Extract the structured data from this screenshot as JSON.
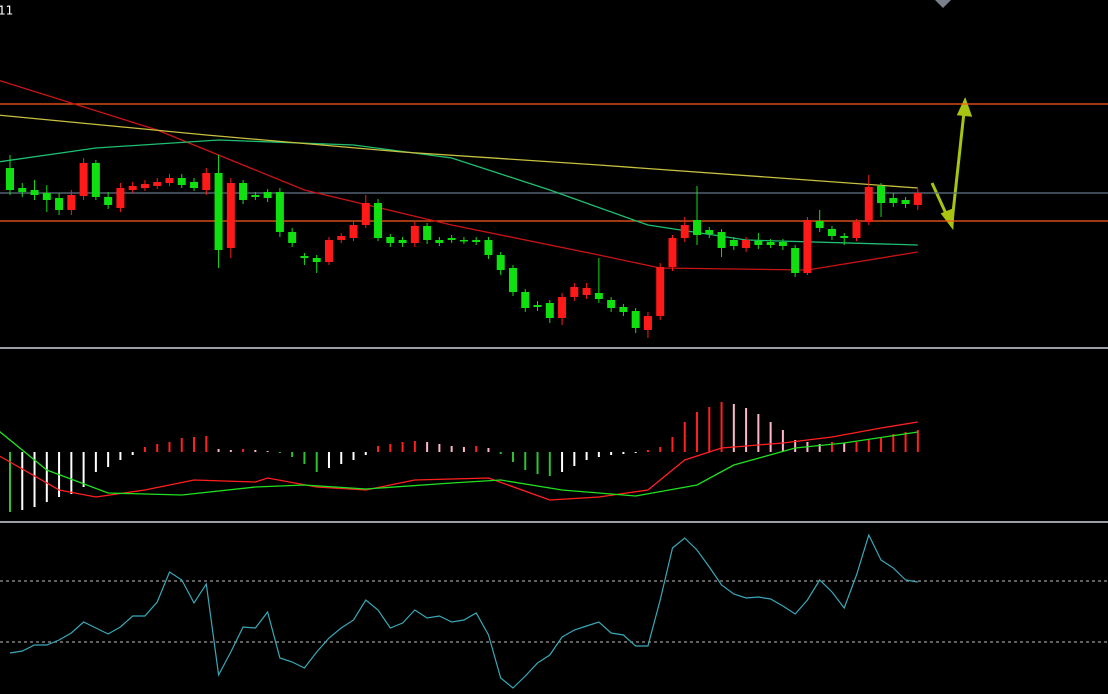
{
  "label": "11",
  "chart_data": [
    {
      "type": "candlestick",
      "pane": [
        0,
        345
      ],
      "xlim": [
        -0.815,
        89.5
      ],
      "ylim": [
        0,
        345
      ],
      "up_color": "#ff1a1a",
      "down_color": "#10e010",
      "open": [
        177,
        157,
        155,
        152,
        147,
        135,
        149,
        182,
        148,
        137,
        155,
        157,
        159,
        162,
        167,
        163,
        155,
        172,
        97,
        162,
        150,
        153,
        153,
        113,
        89,
        87,
        83,
        105,
        107,
        120,
        142,
        108,
        105,
        102,
        119,
        105,
        107,
        105,
        105,
        105,
        90,
        77,
        53,
        40,
        42,
        27,
        48,
        50,
        52,
        45,
        38,
        34,
        15,
        29,
        78,
        107,
        125,
        115,
        113,
        105,
        97,
        104,
        103,
        103,
        97,
        72,
        124,
        116,
        109,
        107,
        123,
        159,
        147,
        145,
        140
      ],
      "close": [
        155,
        153,
        150,
        145,
        135,
        150,
        182,
        148,
        140,
        157,
        159,
        161,
        163,
        167,
        160,
        157,
        172,
        95,
        162,
        145,
        148,
        147,
        113,
        102,
        87,
        83,
        105,
        109,
        120,
        142,
        107,
        102,
        102,
        119,
        105,
        102,
        105,
        104,
        103,
        90,
        75,
        53,
        37,
        38,
        27,
        48,
        58,
        57,
        46,
        37,
        33,
        17,
        29,
        78,
        107,
        120,
        110,
        111,
        97,
        99,
        105,
        100,
        100,
        99,
        72,
        125,
        117,
        109,
        107,
        123,
        158,
        142,
        142,
        141,
        152
      ],
      "high": [
        190,
        162,
        165,
        160,
        152,
        155,
        187,
        185,
        153,
        162,
        163,
        165,
        167,
        171,
        171,
        167,
        177,
        190,
        167,
        165,
        153,
        156,
        157,
        117,
        92,
        90,
        108,
        112,
        124,
        150,
        146,
        111,
        108,
        123,
        122,
        108,
        110,
        108,
        108,
        108,
        93,
        80,
        56,
        44,
        45,
        52,
        62,
        62,
        87,
        48,
        41,
        37,
        33,
        82,
        110,
        128,
        159,
        118,
        116,
        108,
        108,
        112,
        106,
        106,
        100,
        128,
        135,
        119,
        112,
        126,
        170,
        162,
        152,
        148,
        156
      ],
      "low": [
        150,
        148,
        145,
        133,
        130,
        130,
        145,
        145,
        136,
        133,
        152,
        154,
        156,
        159,
        157,
        154,
        150,
        77,
        87,
        141,
        145,
        143,
        108,
        98,
        80,
        72,
        80,
        102,
        104,
        117,
        104,
        98,
        98,
        98,
        101,
        99,
        102,
        101,
        100,
        86,
        70,
        49,
        33,
        34,
        22,
        20,
        44,
        46,
        42,
        33,
        29,
        12,
        7,
        25,
        74,
        103,
        100,
        107,
        88,
        95,
        93,
        96,
        97,
        95,
        68,
        70,
        113,
        105,
        100,
        104,
        120,
        128,
        138,
        137,
        135
      ],
      "series": [
        {
          "color": "#c81414",
          "x": [
            -1,
            12,
            24,
            36,
            48,
            53,
            65,
            74
          ],
          "values": [
            265,
            215,
            155,
            120,
            90,
            77,
            75,
            93
          ]
        },
        {
          "color": "#1fbf70",
          "x": [
            -1,
            7,
            17,
            28,
            36,
            44,
            52,
            60,
            74
          ],
          "values": [
            183,
            197,
            205,
            200,
            187,
            155,
            120,
            105,
            100
          ]
        },
        {
          "color": "#c8c040",
          "x": [
            -1,
            16,
            32,
            48,
            65,
            74
          ],
          "values": [
            230,
            210,
            193,
            180,
            165,
            157
          ]
        }
      ],
      "levels": [
        {
          "value": 241,
          "color": "#ff5a1e"
        },
        {
          "value": 124,
          "color": "#ff5a1e"
        },
        {
          "value": 152,
          "color": "#5f7486"
        }
      ]
    },
    {
      "type": "macd",
      "pane": [
        352,
        520
      ],
      "xlim": [
        -0.815,
        89.5
      ],
      "ylim": [
        -68,
        100
      ],
      "colors": {
        "pos_up": "#ff2020",
        "pos_down": "#ffb6c8",
        "neg_down": "#30c030",
        "neg_up": "#ffffff"
      },
      "values": [
        -60,
        -58,
        -55,
        -50,
        -45,
        -42,
        -35,
        -20,
        -15,
        -8,
        -3,
        5,
        8,
        10,
        14,
        15,
        16,
        3,
        2,
        3,
        2,
        1,
        -1,
        -5,
        -12,
        -20,
        -16,
        -12,
        -8,
        -3,
        6,
        8,
        10,
        11,
        10,
        8,
        6,
        5,
        6,
        4,
        -2,
        -10,
        -18,
        -22,
        -24,
        -20,
        -14,
        -8,
        -5,
        -3,
        -2,
        -1,
        2,
        5,
        15,
        30,
        40,
        45,
        50,
        48,
        44,
        38,
        30,
        22,
        12,
        10,
        8,
        10,
        9,
        10,
        12,
        15,
        18,
        20,
        22
      ],
      "series": [
        {
          "color": "#ff2020",
          "x": [
            -1,
            4,
            7,
            11,
            15,
            20,
            21,
            25,
            29,
            33,
            39,
            44,
            48,
            52,
            55,
            58,
            63,
            67,
            71,
            74
          ],
          "values": [
            -3,
            -38,
            -45,
            -38,
            -28,
            -30,
            -26,
            -35,
            -38,
            -28,
            -26,
            -48,
            -45,
            -38,
            -8,
            4,
            9,
            15,
            24,
            30
          ]
        },
        {
          "color": "#20e020",
          "x": [
            -1,
            3,
            8,
            14,
            20,
            24,
            29,
            36,
            40,
            45,
            51,
            56,
            59,
            64,
            68,
            74
          ],
          "values": [
            22,
            -18,
            -41,
            -43,
            -35,
            -33,
            -37,
            -31,
            -28,
            -38,
            -44,
            -33,
            -13,
            4,
            9,
            20
          ]
        }
      ]
    },
    {
      "type": "line",
      "pane": [
        525,
        694
      ],
      "xlim": [
        -0.815,
        89.5
      ],
      "ylim": [
        0,
        169
      ],
      "color": "#3aa8b8",
      "values": [
        41,
        43,
        49,
        49,
        54,
        61,
        72,
        66,
        60,
        67,
        78,
        78,
        92,
        122,
        114,
        91,
        110,
        19,
        42,
        67,
        66,
        82,
        36,
        32,
        26,
        42,
        56,
        66,
        74,
        94,
        84,
        66,
        71,
        84,
        76,
        78,
        72,
        74,
        81,
        59,
        16,
        6,
        18,
        31,
        39,
        57,
        64,
        68,
        72,
        61,
        59,
        48,
        48,
        94,
        146,
        156,
        144,
        127,
        109,
        100,
        96,
        97,
        95,
        88,
        80,
        94,
        114,
        102,
        86,
        119,
        159,
        134,
        126,
        114,
        112
      ],
      "levels": [
        {
          "value": 113,
          "color": "#9a9a9a"
        },
        {
          "value": 52,
          "color": "#9a9a9a"
        }
      ]
    }
  ]
}
